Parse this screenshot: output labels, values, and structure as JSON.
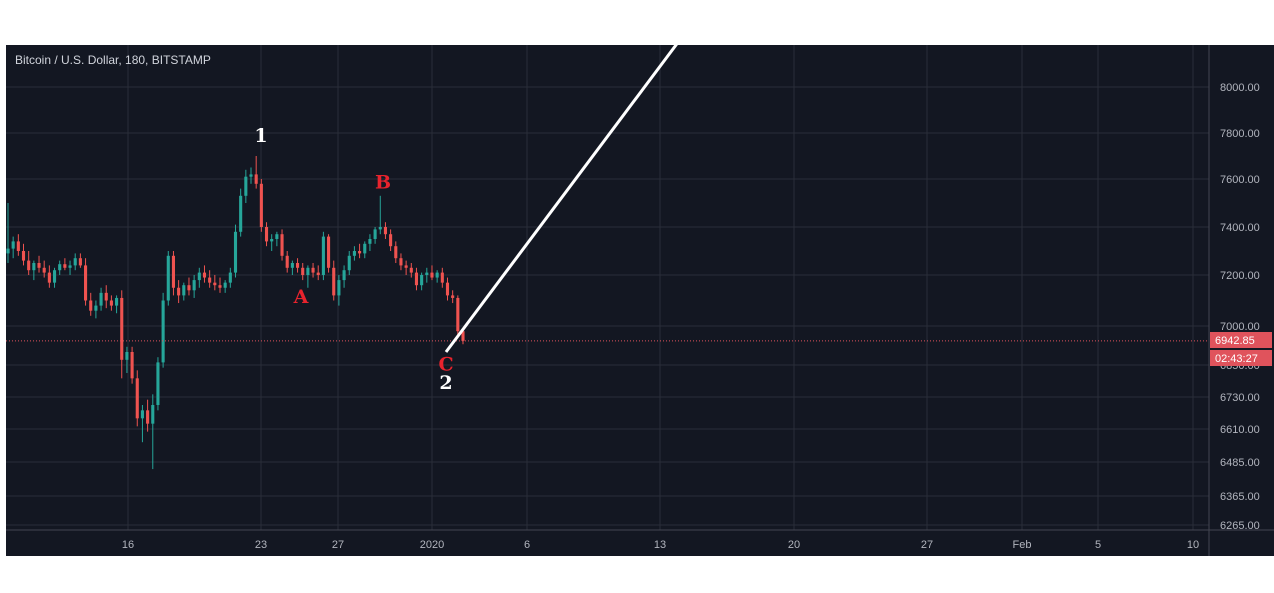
{
  "chart_data": {
    "type": "candlestick",
    "title": "Bitcoin / U.S. Dollar, 180, BITSTAMP",
    "y_ticks": [
      "8000.00",
      "7800.00",
      "7600.00",
      "7400.00",
      "7200.00",
      "7000.00",
      "6850.00",
      "6730.00",
      "6610.00",
      "6485.00",
      "6365.00",
      "6265.00"
    ],
    "x_ticks": [
      "16",
      "23",
      "27",
      "2020",
      "6",
      "13",
      "20",
      "27",
      "Feb",
      "5",
      "10"
    ],
    "current_price": "6942.85",
    "countdown": "02:43:27",
    "grid": true,
    "colors": {
      "up": "#26a69a",
      "down": "#ef5350",
      "background": "#131722",
      "grid": "#2a2e39",
      "line": "#ffffff",
      "label_red": "#e8232d",
      "label_white": "#ffffff",
      "badge": "#e0535c"
    },
    "wave_labels": [
      {
        "text": "1",
        "color": "white",
        "price": 7760,
        "date": "Dec 23"
      },
      {
        "text": "A",
        "color": "red",
        "price": 7090,
        "date": "Dec 25"
      },
      {
        "text": "B",
        "color": "red",
        "price": 7560,
        "date": "Dec 29"
      },
      {
        "text": "C",
        "color": "red",
        "price": 6830,
        "date": "Jan 2"
      },
      {
        "text": "2",
        "color": "white",
        "price": 6760,
        "date": "Jan 2"
      }
    ],
    "projection_line": {
      "start": {
        "date": "Jan 2",
        "price": 6900
      },
      "end": {
        "date": "Jan 14",
        "price": 8200
      }
    },
    "candles": [
      {
        "o": 7290,
        "h": 7500,
        "l": 7250,
        "c": 7310
      },
      {
        "o": 7310,
        "h": 7360,
        "l": 7270,
        "c": 7340
      },
      {
        "o": 7340,
        "h": 7370,
        "l": 7280,
        "c": 7300
      },
      {
        "o": 7300,
        "h": 7330,
        "l": 7240,
        "c": 7260
      },
      {
        "o": 7260,
        "h": 7300,
        "l": 7200,
        "c": 7220
      },
      {
        "o": 7220,
        "h": 7260,
        "l": 7180,
        "c": 7250
      },
      {
        "o": 7250,
        "h": 7280,
        "l": 7210,
        "c": 7230
      },
      {
        "o": 7230,
        "h": 7260,
        "l": 7190,
        "c": 7210
      },
      {
        "o": 7210,
        "h": 7240,
        "l": 7150,
        "c": 7170
      },
      {
        "o": 7170,
        "h": 7230,
        "l": 7150,
        "c": 7220
      },
      {
        "o": 7220,
        "h": 7260,
        "l": 7200,
        "c": 7245
      },
      {
        "o": 7245,
        "h": 7270,
        "l": 7220,
        "c": 7230
      },
      {
        "o": 7230,
        "h": 7260,
        "l": 7200,
        "c": 7240
      },
      {
        "o": 7240,
        "h": 7290,
        "l": 7220,
        "c": 7270
      },
      {
        "o": 7270,
        "h": 7290,
        "l": 7230,
        "c": 7240
      },
      {
        "o": 7240,
        "h": 7270,
        "l": 7080,
        "c": 7100
      },
      {
        "o": 7100,
        "h": 7130,
        "l": 7040,
        "c": 7060
      },
      {
        "o": 7060,
        "h": 7100,
        "l": 7030,
        "c": 7080
      },
      {
        "o": 7080,
        "h": 7150,
        "l": 7060,
        "c": 7130
      },
      {
        "o": 7130,
        "h": 7160,
        "l": 7070,
        "c": 7100
      },
      {
        "o": 7100,
        "h": 7120,
        "l": 7060,
        "c": 7080
      },
      {
        "o": 7080,
        "h": 7120,
        "l": 7050,
        "c": 7110
      },
      {
        "o": 7110,
        "h": 7140,
        "l": 6800,
        "c": 6870
      },
      {
        "o": 6870,
        "h": 6920,
        "l": 6820,
        "c": 6900
      },
      {
        "o": 6900,
        "h": 6920,
        "l": 6780,
        "c": 6800
      },
      {
        "o": 6800,
        "h": 6830,
        "l": 6620,
        "c": 6650
      },
      {
        "o": 6650,
        "h": 6700,
        "l": 6560,
        "c": 6680
      },
      {
        "o": 6680,
        "h": 6720,
        "l": 6600,
        "c": 6630
      },
      {
        "o": 6630,
        "h": 6740,
        "l": 6460,
        "c": 6700
      },
      {
        "o": 6700,
        "h": 6880,
        "l": 6680,
        "c": 6860
      },
      {
        "o": 6860,
        "h": 7130,
        "l": 6840,
        "c": 7100
      },
      {
        "o": 7100,
        "h": 7300,
        "l": 7080,
        "c": 7280
      },
      {
        "o": 7280,
        "h": 7300,
        "l": 7120,
        "c": 7150
      },
      {
        "o": 7150,
        "h": 7180,
        "l": 7090,
        "c": 7120
      },
      {
        "o": 7120,
        "h": 7170,
        "l": 7100,
        "c": 7160
      },
      {
        "o": 7160,
        "h": 7190,
        "l": 7120,
        "c": 7140
      },
      {
        "o": 7140,
        "h": 7200,
        "l": 7110,
        "c": 7180
      },
      {
        "o": 7180,
        "h": 7230,
        "l": 7150,
        "c": 7210
      },
      {
        "o": 7210,
        "h": 7240,
        "l": 7170,
        "c": 7190
      },
      {
        "o": 7190,
        "h": 7220,
        "l": 7150,
        "c": 7170
      },
      {
        "o": 7170,
        "h": 7200,
        "l": 7140,
        "c": 7160
      },
      {
        "o": 7160,
        "h": 7190,
        "l": 7130,
        "c": 7150
      },
      {
        "o": 7150,
        "h": 7180,
        "l": 7130,
        "c": 7170
      },
      {
        "o": 7170,
        "h": 7230,
        "l": 7150,
        "c": 7210
      },
      {
        "o": 7210,
        "h": 7410,
        "l": 7190,
        "c": 7380
      },
      {
        "o": 7380,
        "h": 7560,
        "l": 7360,
        "c": 7530
      },
      {
        "o": 7530,
        "h": 7640,
        "l": 7500,
        "c": 7610
      },
      {
        "o": 7610,
        "h": 7650,
        "l": 7580,
        "c": 7620
      },
      {
        "o": 7620,
        "h": 7700,
        "l": 7560,
        "c": 7580
      },
      {
        "o": 7580,
        "h": 7600,
        "l": 7380,
        "c": 7400
      },
      {
        "o": 7400,
        "h": 7420,
        "l": 7320,
        "c": 7340
      },
      {
        "o": 7340,
        "h": 7370,
        "l": 7300,
        "c": 7350
      },
      {
        "o": 7350,
        "h": 7380,
        "l": 7320,
        "c": 7370
      },
      {
        "o": 7370,
        "h": 7390,
        "l": 7260,
        "c": 7280
      },
      {
        "o": 7280,
        "h": 7300,
        "l": 7210,
        "c": 7230
      },
      {
        "o": 7230,
        "h": 7260,
        "l": 7200,
        "c": 7250
      },
      {
        "o": 7250,
        "h": 7270,
        "l": 7210,
        "c": 7230
      },
      {
        "o": 7230,
        "h": 7250,
        "l": 7180,
        "c": 7200
      },
      {
        "o": 7200,
        "h": 7240,
        "l": 7150,
        "c": 7230
      },
      {
        "o": 7230,
        "h": 7250,
        "l": 7190,
        "c": 7210
      },
      {
        "o": 7210,
        "h": 7240,
        "l": 7180,
        "c": 7200
      },
      {
        "o": 7200,
        "h": 7380,
        "l": 7180,
        "c": 7360
      },
      {
        "o": 7360,
        "h": 7370,
        "l": 7210,
        "c": 7230
      },
      {
        "o": 7230,
        "h": 7260,
        "l": 7100,
        "c": 7120
      },
      {
        "o": 7120,
        "h": 7200,
        "l": 7080,
        "c": 7180
      },
      {
        "o": 7180,
        "h": 7240,
        "l": 7150,
        "c": 7220
      },
      {
        "o": 7220,
        "h": 7300,
        "l": 7200,
        "c": 7280
      },
      {
        "o": 7280,
        "h": 7320,
        "l": 7260,
        "c": 7300
      },
      {
        "o": 7300,
        "h": 7330,
        "l": 7270,
        "c": 7290
      },
      {
        "o": 7290,
        "h": 7340,
        "l": 7270,
        "c": 7330
      },
      {
        "o": 7330,
        "h": 7370,
        "l": 7300,
        "c": 7350
      },
      {
        "o": 7350,
        "h": 7400,
        "l": 7330,
        "c": 7390
      },
      {
        "o": 7390,
        "h": 7530,
        "l": 7370,
        "c": 7400
      },
      {
        "o": 7400,
        "h": 7420,
        "l": 7350,
        "c": 7370
      },
      {
        "o": 7370,
        "h": 7390,
        "l": 7300,
        "c": 7320
      },
      {
        "o": 7320,
        "h": 7340,
        "l": 7250,
        "c": 7270
      },
      {
        "o": 7270,
        "h": 7290,
        "l": 7220,
        "c": 7240
      },
      {
        "o": 7240,
        "h": 7260,
        "l": 7200,
        "c": 7230
      },
      {
        "o": 7230,
        "h": 7250,
        "l": 7190,
        "c": 7210
      },
      {
        "o": 7210,
        "h": 7230,
        "l": 7140,
        "c": 7160
      },
      {
        "o": 7160,
        "h": 7210,
        "l": 7140,
        "c": 7200
      },
      {
        "o": 7200,
        "h": 7230,
        "l": 7170,
        "c": 7210
      },
      {
        "o": 7210,
        "h": 7240,
        "l": 7180,
        "c": 7190
      },
      {
        "o": 7190,
        "h": 7220,
        "l": 7170,
        "c": 7210
      },
      {
        "o": 7210,
        "h": 7230,
        "l": 7150,
        "c": 7170
      },
      {
        "o": 7170,
        "h": 7190,
        "l": 7100,
        "c": 7120
      },
      {
        "o": 7120,
        "h": 7140,
        "l": 7090,
        "c": 7110
      },
      {
        "o": 7110,
        "h": 7120,
        "l": 6960,
        "c": 6980
      },
      {
        "o": 6980,
        "h": 6990,
        "l": 6930,
        "c": 6942.85
      }
    ]
  }
}
